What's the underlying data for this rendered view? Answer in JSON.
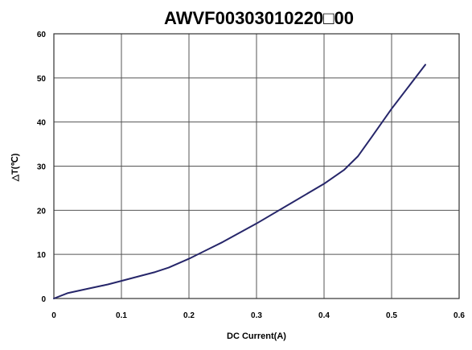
{
  "chart_data": {
    "type": "line",
    "title": "AWVF00303010220□00",
    "xlabel": "DC Current(A)",
    "ylabel": "△T(℃)",
    "xlim": [
      0,
      0.6
    ],
    "ylim": [
      0,
      60
    ],
    "xticks": [
      "0",
      "0.1",
      "0.2",
      "0.3",
      "0.4",
      "0.5",
      "0.6"
    ],
    "yticks": [
      "0",
      "10",
      "20",
      "30",
      "40",
      "50",
      "60"
    ],
    "grid": true,
    "series": [
      {
        "x": [
          0,
          0.02,
          0.05,
          0.08,
          0.1,
          0.13,
          0.15,
          0.17,
          0.2,
          0.25,
          0.3,
          0.35,
          0.4,
          0.43,
          0.45,
          0.47,
          0.5,
          0.55
        ],
        "y": [
          0,
          1.2,
          2.2,
          3.2,
          4.0,
          5.2,
          6.0,
          7.0,
          9.0,
          12.8,
          17.0,
          21.5,
          26.0,
          29.2,
          32.2,
          36.5,
          43.0,
          53.0
        ],
        "color": "#26266a"
      }
    ]
  }
}
